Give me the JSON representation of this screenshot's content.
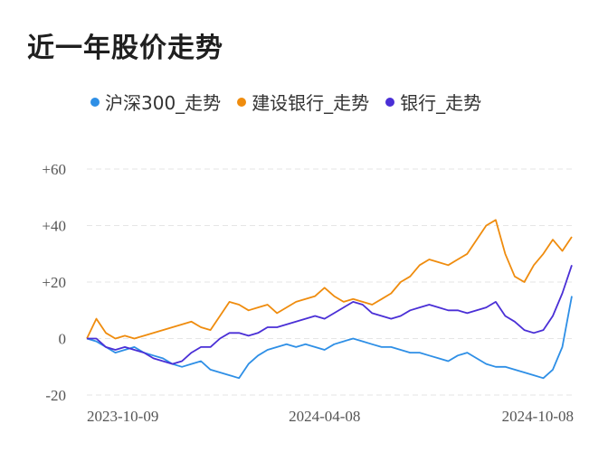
{
  "chart_data": {
    "type": "line",
    "title": "近一年股价走势",
    "legend_position": "top",
    "grid": true,
    "ylim": [
      -20,
      60
    ],
    "yticks": [
      "+60",
      "+40",
      "+20",
      "0",
      "-20"
    ],
    "x_tick_labels": [
      "2023-10-09",
      "2024-04-08",
      "2024-10-08"
    ],
    "x": [
      "2023-10-09",
      "2023-10-16",
      "2023-10-23",
      "2023-10-30",
      "2023-11-06",
      "2023-11-13",
      "2023-11-20",
      "2023-11-27",
      "2023-12-04",
      "2023-12-11",
      "2023-12-18",
      "2023-12-25",
      "2024-01-02",
      "2024-01-08",
      "2024-01-15",
      "2024-01-22",
      "2024-01-29",
      "2024-02-05",
      "2024-02-19",
      "2024-02-26",
      "2024-03-04",
      "2024-03-11",
      "2024-03-18",
      "2024-03-25",
      "2024-04-01",
      "2024-04-08",
      "2024-04-15",
      "2024-04-22",
      "2024-04-29",
      "2024-05-06",
      "2024-05-13",
      "2024-05-20",
      "2024-05-27",
      "2024-06-03",
      "2024-06-10",
      "2024-06-17",
      "2024-06-24",
      "2024-07-01",
      "2024-07-08",
      "2024-07-15",
      "2024-07-22",
      "2024-07-29",
      "2024-08-05",
      "2024-08-12",
      "2024-08-19",
      "2024-08-26",
      "2024-09-02",
      "2024-09-09",
      "2024-09-16",
      "2024-09-23",
      "2024-09-30",
      "2024-10-08"
    ],
    "series": [
      {
        "name": "沪深300_走势",
        "color": "#2e8fe6",
        "values": [
          0,
          -1,
          -3,
          -5,
          -4,
          -3,
          -5,
          -6,
          -7,
          -9,
          -10,
          -9,
          -8,
          -11,
          -12,
          -13,
          -14,
          -9,
          -6,
          -4,
          -3,
          -2,
          -3,
          -2,
          -3,
          -4,
          -2,
          -1,
          0,
          -1,
          -2,
          -3,
          -3,
          -4,
          -5,
          -5,
          -6,
          -7,
          -8,
          -6,
          -5,
          -7,
          -9,
          -10,
          -10,
          -11,
          -12,
          -13,
          -14,
          -11,
          -3,
          15
        ]
      },
      {
        "name": "建设银行_走势",
        "color": "#ef8c0e",
        "values": [
          0,
          7,
          2,
          0,
          1,
          0,
          1,
          2,
          3,
          4,
          5,
          6,
          4,
          3,
          8,
          13,
          12,
          10,
          11,
          12,
          9,
          11,
          13,
          14,
          15,
          18,
          15,
          13,
          14,
          13,
          12,
          14,
          16,
          20,
          22,
          26,
          28,
          27,
          26,
          28,
          30,
          35,
          40,
          42,
          30,
          22,
          20,
          26,
          30,
          35,
          31,
          36
        ]
      },
      {
        "name": "银行_走势",
        "color": "#4a2fd6",
        "values": [
          0,
          0,
          -3,
          -4,
          -3,
          -4,
          -5,
          -7,
          -8,
          -9,
          -8,
          -5,
          -3,
          -3,
          0,
          2,
          2,
          1,
          2,
          4,
          4,
          5,
          6,
          7,
          8,
          7,
          9,
          11,
          13,
          12,
          9,
          8,
          7,
          8,
          10,
          11,
          12,
          11,
          10,
          10,
          9,
          10,
          11,
          13,
          8,
          6,
          3,
          2,
          3,
          8,
          16,
          26
        ]
      }
    ]
  }
}
